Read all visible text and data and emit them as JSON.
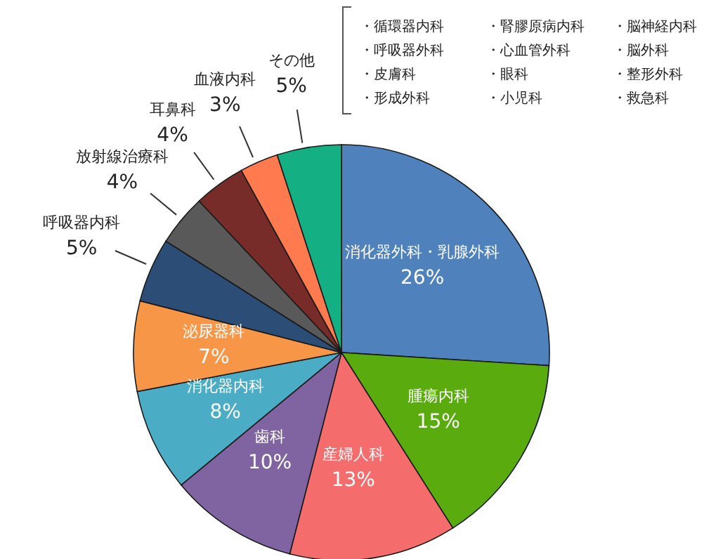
{
  "chart_data": {
    "type": "pie",
    "categories": [
      "消化器外科・乳腺外科",
      "腫瘍内科",
      "産婦人科",
      "歯科",
      "消化器内科",
      "泌尿器科",
      "呼吸器内科",
      "放射線治療科",
      "耳鼻科",
      "血液内科",
      "その他"
    ],
    "values": [
      26,
      15,
      13,
      10,
      8,
      7,
      5,
      4,
      4,
      3,
      5
    ],
    "value_labels": [
      "26%",
      "15%",
      "13%",
      "10%",
      "8%",
      "7%",
      "5%",
      "4%",
      "4%",
      "3%",
      "5%"
    ],
    "colors": [
      "#4f81bd",
      "#5aab0d",
      "#f56c6c",
      "#8064a2",
      "#4bacc6",
      "#f79646",
      "#2c4d75",
      "#595959",
      "#772c2a",
      "#ff7b4f",
      "#14b084"
    ],
    "legend": false,
    "annotations": [
      "・循環器内科",
      "・腎膠原病内科",
      "・脳神経内科",
      "・呼吸器外科",
      "・心血管外科",
      "・脳外科",
      "・皮膚科",
      "・眼科",
      "・整形外科",
      "・形成外科",
      "・小児科",
      "・救急科"
    ]
  }
}
